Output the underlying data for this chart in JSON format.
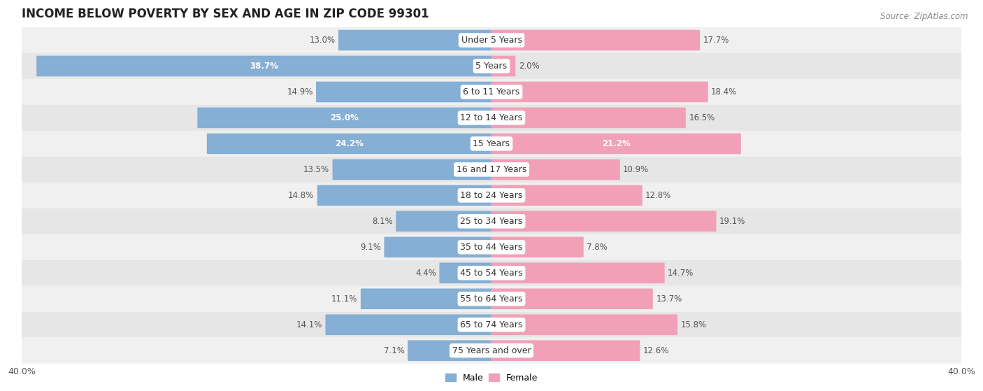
{
  "title": "INCOME BELOW POVERTY BY SEX AND AGE IN ZIP CODE 99301",
  "source": "Source: ZipAtlas.com",
  "categories": [
    "Under 5 Years",
    "5 Years",
    "6 to 11 Years",
    "12 to 14 Years",
    "15 Years",
    "16 and 17 Years",
    "18 to 24 Years",
    "25 to 34 Years",
    "35 to 44 Years",
    "45 to 54 Years",
    "55 to 64 Years",
    "65 to 74 Years",
    "75 Years and over"
  ],
  "male_values": [
    13.0,
    38.7,
    14.9,
    25.0,
    24.2,
    13.5,
    14.8,
    8.1,
    9.1,
    4.4,
    11.1,
    14.1,
    7.1
  ],
  "female_values": [
    17.7,
    2.0,
    18.4,
    16.5,
    21.2,
    10.9,
    12.8,
    19.1,
    7.8,
    14.7,
    13.7,
    15.8,
    12.6
  ],
  "male_color": "#85afd4",
  "female_color": "#f2a0b8",
  "male_color_light": "#b8d0e8",
  "female_color_light": "#f7c5d5",
  "background_color": "#ffffff",
  "row_even_color": "#f0f0f0",
  "row_odd_color": "#e6e6e6",
  "max_value": 40.0,
  "bar_height": 0.72,
  "title_fontsize": 12,
  "label_fontsize": 8.5,
  "tick_fontsize": 9,
  "source_fontsize": 8.5,
  "cat_fontsize": 9
}
